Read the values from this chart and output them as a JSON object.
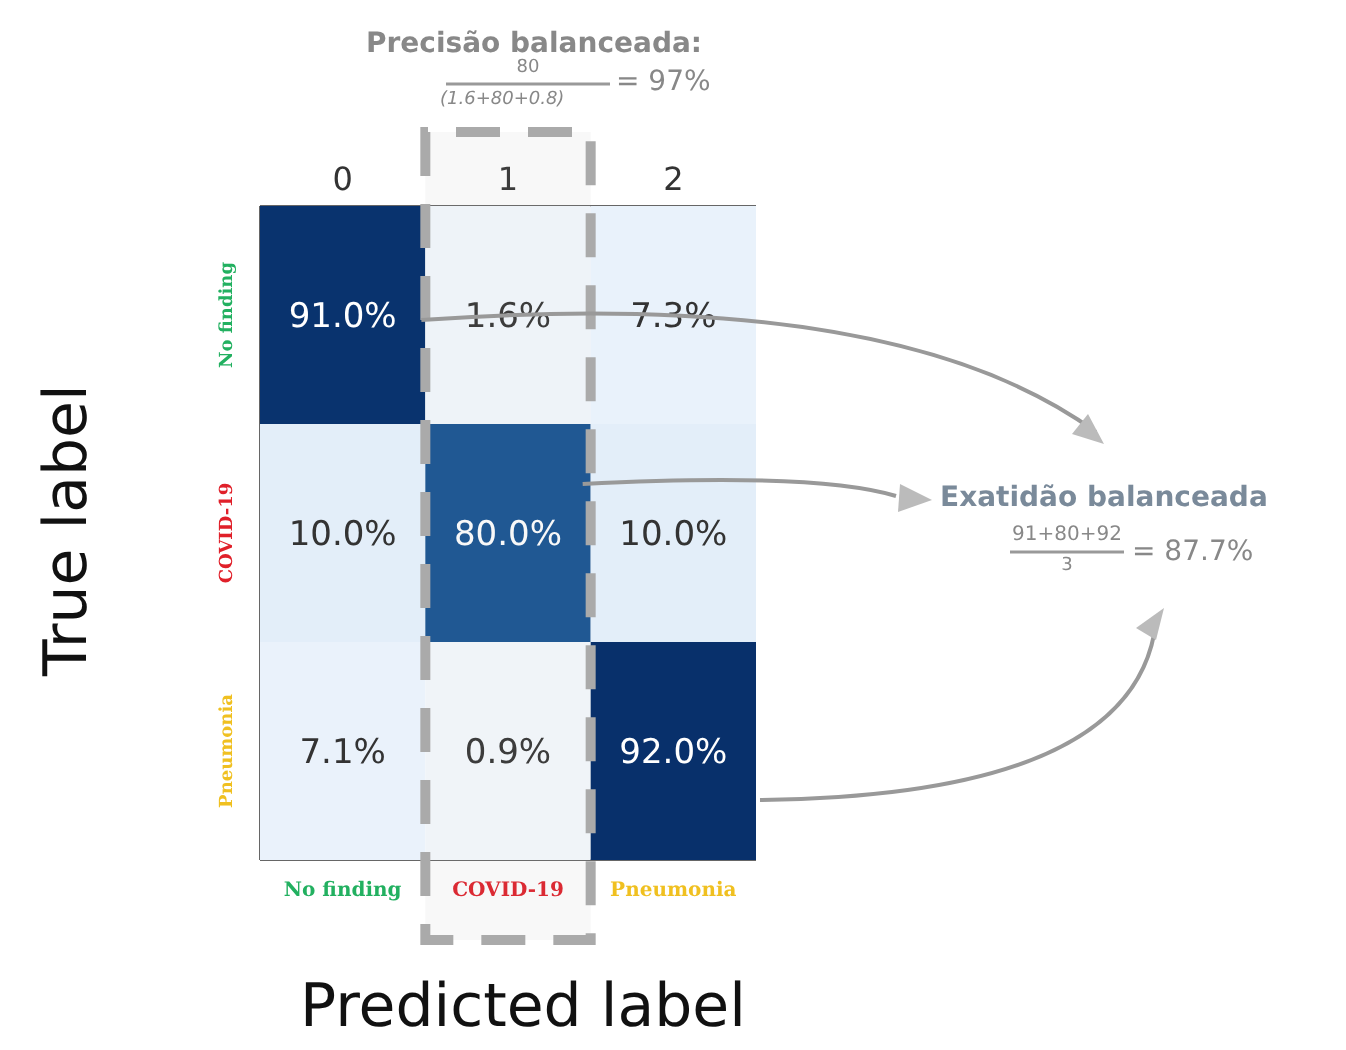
{
  "chart_data": {
    "type": "heatmap",
    "xlabel": "Predicted label",
    "ylabel": "True label",
    "categories": [
      "No finding",
      "COVID-19",
      "Pneumonia"
    ],
    "y_categories": [
      "No finding",
      "COVID-19",
      "Pneumonia"
    ],
    "x2lim": [
      -0.5,
      2.5
    ],
    "x2ticks": [
      0,
      1,
      2
    ],
    "bands": [
      {
        "axis": "x2",
        "from": 0.5,
        "to": 1.5,
        "color": "#aaaaaa"
      }
    ],
    "cells": [
      [
        91.0,
        1.6,
        7.3
      ],
      [
        10.0,
        80.0,
        10.0
      ],
      [
        7.1,
        0.9,
        92.0
      ]
    ],
    "cell_labels": [
      [
        "91.0%",
        "1.6%",
        "7.3%"
      ],
      [
        "10.0%",
        "80.0%",
        "10.0%"
      ],
      [
        "7.1%",
        "0.9%",
        "92.0%"
      ]
    ],
    "annotations": [
      "Precisão balanceada:",
      "80",
      "(1.6+80+0.8)",
      "= 97%",
      "Exatidão balanceada",
      "91+80+92",
      "3",
      "= 87.7%"
    ]
  }
}
